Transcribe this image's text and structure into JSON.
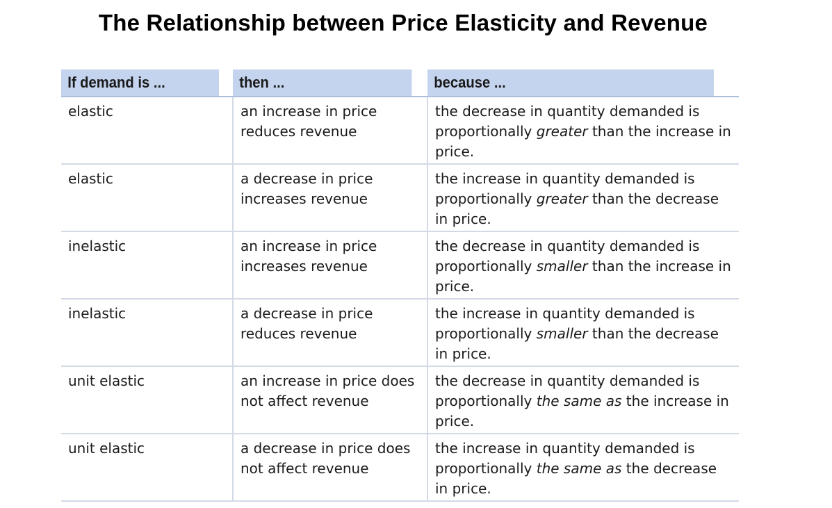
{
  "title": "The Relationship between Price Elasticity and Revenue",
  "table": {
    "headers": [
      "If demand is ...",
      "then ...",
      "because ..."
    ],
    "rows": [
      {
        "demand": "elastic",
        "then": "an increase in price reduces revenue",
        "because_pre": "the decrease in quantity demanded is proportionally ",
        "because_em": "greater",
        "because_post": " than the increase in price."
      },
      {
        "demand": "elastic",
        "then": "a decrease in price increases revenue",
        "because_pre": "the increase in quantity demanded is proportionally ",
        "because_em": "greater",
        "because_post": " than the decrease in price."
      },
      {
        "demand": "inelastic",
        "then": "an increase in price increases revenue",
        "because_pre": "the decrease in quantity demanded is proportionally ",
        "because_em": "smaller",
        "because_post": " than the increase in price."
      },
      {
        "demand": "inelastic",
        "then": "a decrease in price reduces revenue",
        "because_pre": "the increase in quantity demanded is proportionally ",
        "because_em": "smaller",
        "because_post": " than the decrease in price."
      },
      {
        "demand": "unit elastic",
        "then": "an increase in price does not affect revenue",
        "because_pre": "the decrease in quantity demanded is proportionally ",
        "because_em": "the same as",
        "because_post": " the increase in price."
      },
      {
        "demand": "unit elastic",
        "then": "a decrease in price does not affect revenue",
        "because_pre": "the increase in quantity demanded is proportionally ",
        "because_em": "the same as",
        "because_post": " the decrease in price."
      }
    ]
  }
}
